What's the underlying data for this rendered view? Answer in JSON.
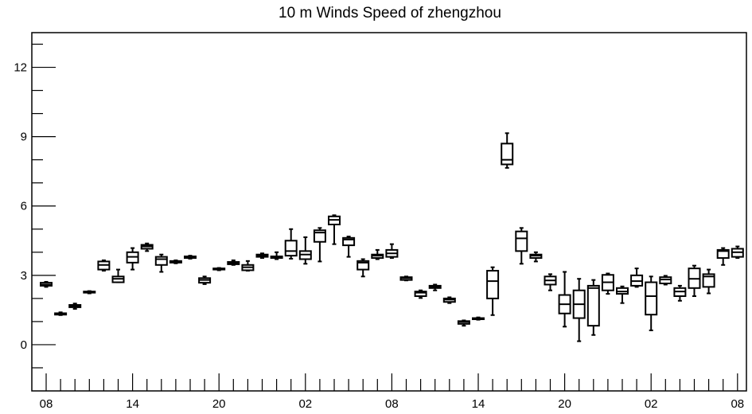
{
  "chart_data": {
    "type": "box",
    "title": "10 m Winds Speed of zhengzhou",
    "xlabel": "",
    "ylabel": "",
    "ylim": [
      -2,
      13.5
    ],
    "y_ticks": [
      0,
      3,
      6,
      9,
      12
    ],
    "y_tick_labels": [
      "0",
      "3",
      "6",
      "9",
      "12"
    ],
    "x_tick_labels": [
      "08",
      "14",
      "20",
      "02",
      "08",
      "14",
      "20",
      "02",
      "08"
    ],
    "x_tick_positions": [
      0,
      6,
      12,
      18,
      24,
      30,
      36,
      42,
      48
    ],
    "grid": false,
    "series_color": "#000000",
    "boxes": [
      {
        "x": 0,
        "min": 2.5,
        "q1": 2.55,
        "median": 2.6,
        "q3": 2.68,
        "max": 2.72
      },
      {
        "x": 1,
        "min": 1.28,
        "q1": 1.3,
        "median": 1.33,
        "q3": 1.36,
        "max": 1.4
      },
      {
        "x": 2,
        "min": 1.55,
        "q1": 1.62,
        "median": 1.68,
        "q3": 1.72,
        "max": 1.78
      },
      {
        "x": 3,
        "min": 2.22,
        "q1": 2.25,
        "median": 2.28,
        "q3": 2.3,
        "max": 2.32
      },
      {
        "x": 4,
        "min": 3.2,
        "q1": 3.25,
        "median": 3.45,
        "q3": 3.6,
        "max": 3.65
      },
      {
        "x": 5,
        "min": 2.7,
        "q1": 2.7,
        "median": 2.85,
        "q3": 2.95,
        "max": 3.25
      },
      {
        "x": 6,
        "min": 3.25,
        "q1": 3.55,
        "median": 3.8,
        "q3": 4.0,
        "max": 4.18
      },
      {
        "x": 7,
        "min": 4.05,
        "q1": 4.15,
        "median": 4.25,
        "q3": 4.32,
        "max": 4.38
      },
      {
        "x": 8,
        "min": 3.15,
        "q1": 3.45,
        "median": 3.7,
        "q3": 3.8,
        "max": 3.9
      },
      {
        "x": 9,
        "min": 3.52,
        "q1": 3.55,
        "median": 3.6,
        "q3": 3.62,
        "max": 3.65
      },
      {
        "x": 10,
        "min": 3.72,
        "q1": 3.75,
        "median": 3.8,
        "q3": 3.82,
        "max": 3.85
      },
      {
        "x": 11,
        "min": 2.62,
        "q1": 2.68,
        "median": 2.8,
        "q3": 2.88,
        "max": 2.95
      },
      {
        "x": 12,
        "min": 3.22,
        "q1": 3.25,
        "median": 3.28,
        "q3": 3.3,
        "max": 3.32
      },
      {
        "x": 13,
        "min": 3.45,
        "q1": 3.48,
        "median": 3.52,
        "q3": 3.58,
        "max": 3.65
      },
      {
        "x": 14,
        "min": 3.2,
        "q1": 3.22,
        "median": 3.35,
        "q3": 3.45,
        "max": 3.62
      },
      {
        "x": 15,
        "min": 3.75,
        "q1": 3.8,
        "median": 3.85,
        "q3": 3.9,
        "max": 3.95
      },
      {
        "x": 16,
        "min": 3.7,
        "q1": 3.75,
        "median": 3.8,
        "q3": 3.82,
        "max": 4.0
      },
      {
        "x": 17,
        "min": 3.72,
        "q1": 3.85,
        "median": 4.05,
        "q3": 4.5,
        "max": 5.0
      },
      {
        "x": 18,
        "min": 3.5,
        "q1": 3.7,
        "median": 3.9,
        "q3": 4.05,
        "max": 4.65
      },
      {
        "x": 19,
        "min": 3.6,
        "q1": 4.45,
        "median": 4.85,
        "q3": 4.95,
        "max": 5.05
      },
      {
        "x": 20,
        "min": 4.35,
        "q1": 5.2,
        "median": 5.4,
        "q3": 5.55,
        "max": 5.6
      },
      {
        "x": 21,
        "min": 3.8,
        "q1": 4.3,
        "median": 4.55,
        "q3": 4.62,
        "max": 4.68
      },
      {
        "x": 22,
        "min": 2.95,
        "q1": 3.25,
        "median": 3.55,
        "q3": 3.62,
        "max": 3.7
      },
      {
        "x": 23,
        "min": 3.7,
        "q1": 3.75,
        "median": 3.85,
        "q3": 3.9,
        "max": 4.1
      },
      {
        "x": 24,
        "min": 3.75,
        "q1": 3.8,
        "median": 3.95,
        "q3": 4.1,
        "max": 4.35
      },
      {
        "x": 25,
        "min": 2.78,
        "q1": 2.8,
        "median": 2.88,
        "q3": 2.92,
        "max": 2.95
      },
      {
        "x": 26,
        "min": 2.02,
        "q1": 2.1,
        "median": 2.25,
        "q3": 2.3,
        "max": 2.35
      },
      {
        "x": 27,
        "min": 2.35,
        "q1": 2.45,
        "median": 2.5,
        "q3": 2.55,
        "max": 2.6
      },
      {
        "x": 28,
        "min": 1.8,
        "q1": 1.85,
        "median": 1.95,
        "q3": 2.0,
        "max": 2.05
      },
      {
        "x": 29,
        "min": 0.82,
        "q1": 0.9,
        "median": 0.98,
        "q3": 1.02,
        "max": 1.05
      },
      {
        "x": 30,
        "min": 1.08,
        "q1": 1.1,
        "median": 1.12,
        "q3": 1.15,
        "max": 1.18
      },
      {
        "x": 31,
        "min": 1.28,
        "q1": 2.0,
        "median": 2.75,
        "q3": 3.2,
        "max": 3.35
      },
      {
        "x": 32,
        "min": 7.65,
        "q1": 7.8,
        "median": 8.0,
        "q3": 8.7,
        "max": 9.15
      },
      {
        "x": 33,
        "min": 3.5,
        "q1": 4.05,
        "median": 4.6,
        "q3": 4.9,
        "max": 5.05
      },
      {
        "x": 34,
        "min": 3.6,
        "q1": 3.75,
        "median": 3.85,
        "q3": 3.9,
        "max": 4.0
      },
      {
        "x": 35,
        "min": 2.35,
        "q1": 2.6,
        "median": 2.78,
        "q3": 2.95,
        "max": 3.05
      },
      {
        "x": 36,
        "min": 0.78,
        "q1": 1.35,
        "median": 1.75,
        "q3": 2.15,
        "max": 3.15
      },
      {
        "x": 37,
        "min": 0.15,
        "q1": 1.15,
        "median": 1.75,
        "q3": 2.35,
        "max": 2.85
      },
      {
        "x": 38,
        "min": 0.42,
        "q1": 0.82,
        "median": 2.45,
        "q3": 2.55,
        "max": 2.8
      },
      {
        "x": 39,
        "min": 2.2,
        "q1": 2.35,
        "median": 2.7,
        "q3": 3.02,
        "max": 3.08
      },
      {
        "x": 40,
        "min": 1.8,
        "q1": 2.2,
        "median": 2.3,
        "q3": 2.45,
        "max": 2.52
      },
      {
        "x": 41,
        "min": 2.5,
        "q1": 2.55,
        "median": 2.75,
        "q3": 3.0,
        "max": 3.3
      },
      {
        "x": 42,
        "min": 0.62,
        "q1": 1.3,
        "median": 2.1,
        "q3": 2.7,
        "max": 2.95
      },
      {
        "x": 43,
        "min": 2.6,
        "q1": 2.65,
        "median": 2.82,
        "q3": 2.92,
        "max": 2.98
      },
      {
        "x": 44,
        "min": 1.9,
        "q1": 2.1,
        "median": 2.3,
        "q3": 2.45,
        "max": 2.55
      },
      {
        "x": 45,
        "min": 2.1,
        "q1": 2.45,
        "median": 2.85,
        "q3": 3.3,
        "max": 3.42
      },
      {
        "x": 46,
        "min": 2.22,
        "q1": 2.5,
        "median": 2.95,
        "q3": 3.05,
        "max": 3.25
      },
      {
        "x": 47,
        "min": 3.45,
        "q1": 3.75,
        "median": 4.05,
        "q3": 4.1,
        "max": 4.18
      },
      {
        "x": 48,
        "min": 3.75,
        "q1": 3.8,
        "median": 4.0,
        "q3": 4.15,
        "max": 4.25
      }
    ]
  }
}
